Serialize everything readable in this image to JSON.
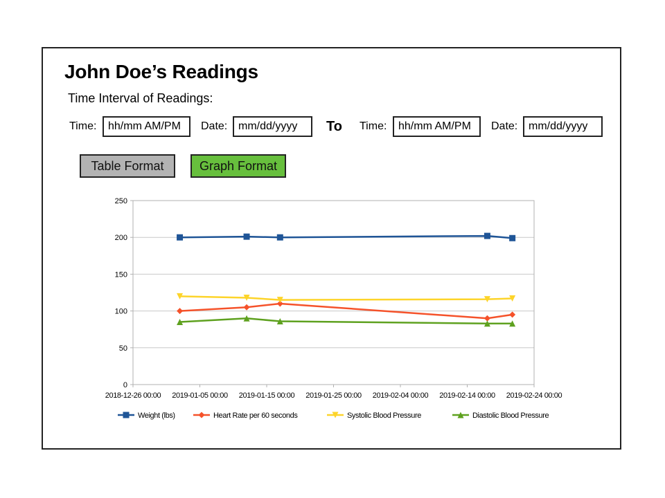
{
  "page": {
    "title": "John Doe’s Readings",
    "subtitle": "Time Interval of Readings:"
  },
  "interval": {
    "from_time_label": "Time:",
    "from_time_placeholder": "hh/mm AM/PM",
    "from_date_label": "Date:",
    "from_date_placeholder": "mm/dd/yyyy",
    "to_label": "To",
    "to_time_label": "Time:",
    "to_time_placeholder": "hh/mm AM/PM",
    "to_date_label": "Date:",
    "to_date_placeholder": "mm/dd/yyyy"
  },
  "buttons": {
    "table_label": "Table Format",
    "graph_label": "Graph Format",
    "table_color": "#b3b3b3",
    "graph_color": "#67bf3d"
  },
  "chart_data": {
    "type": "line",
    "title": "",
    "xlabel": "",
    "ylabel": "",
    "xlim": [
      "2018-12-26 00:00",
      "2019-02-24 00:00"
    ],
    "ylim": [
      0,
      250
    ],
    "x_ticks": [
      "2018-12-26 00:00",
      "2019-01-05 00:00",
      "2019-01-15 00:00",
      "2019-01-25 00:00",
      "2019-02-04 00:00",
      "2019-02-14 00:00",
      "2019-02-24 00:00"
    ],
    "y_ticks": [
      0,
      50,
      100,
      150,
      200,
      250
    ],
    "grid": true,
    "legend_position": "bottom",
    "x": [
      "2019-01-02 00:00",
      "2019-01-12 00:00",
      "2019-01-17 00:00",
      "2019-02-17 00:00",
      "2019-02-20 18:00"
    ],
    "series": [
      {
        "name": "Weight (lbs)",
        "values": [
          200,
          201,
          200,
          202,
          199
        ],
        "color": "#1f5597",
        "marker": "square"
      },
      {
        "name": "Heart Rate per 60 seconds",
        "values": [
          100,
          105,
          110,
          90,
          95
        ],
        "color": "#f5522a",
        "marker": "diamond"
      },
      {
        "name": "Systolic Blood Pressure",
        "values": [
          120,
          118,
          115,
          116,
          117
        ],
        "color": "#fdd42a",
        "marker": "triangle-down"
      },
      {
        "name": "Diastolic Blood Pressure",
        "values": [
          85,
          90,
          86,
          83,
          83
        ],
        "color": "#5ea11f",
        "marker": "triangle-up"
      }
    ]
  }
}
